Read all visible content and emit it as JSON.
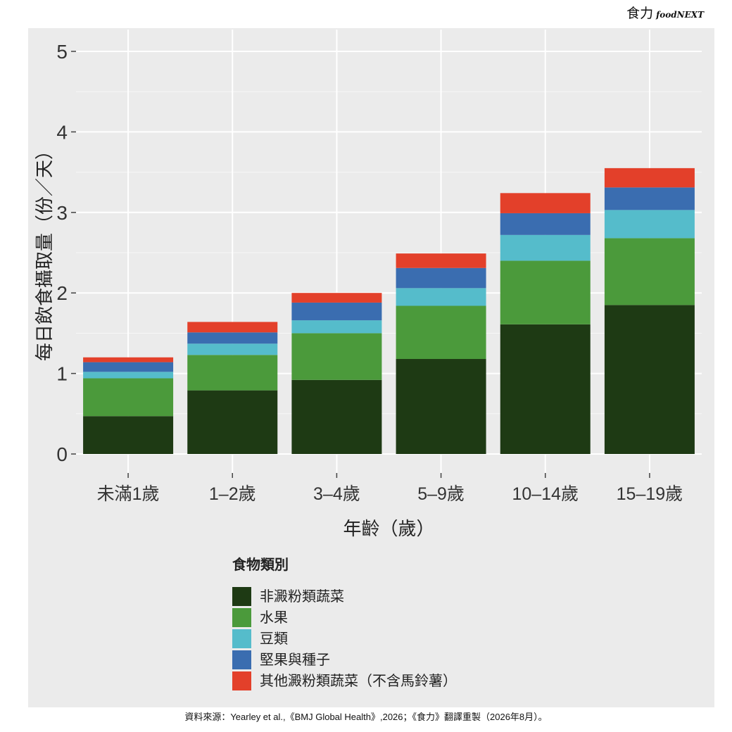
{
  "brand": {
    "cn": "食力",
    "en": "foodNEXT"
  },
  "footer": {
    "source": "資料來源：Yearley et al.,《BMJ Global Health》,2026；《食力》翻譯重製（2026年8月）。"
  },
  "chart_data": {
    "type": "bar",
    "stacked": true,
    "title": "",
    "xlabel": "年齡（歲）",
    "ylabel": "每日飲食攝取量（份／天）",
    "ylim": [
      0,
      5
    ],
    "yticks": [
      "0",
      "1",
      "2",
      "3",
      "4",
      "5"
    ],
    "grid": true,
    "legend_title": "食物類別",
    "legend_position": "bottom",
    "categories": [
      "未滿1歲",
      "1–2歲",
      "3–4歲",
      "5–9歲",
      "10–14歲",
      "15–19歲"
    ],
    "series": [
      {
        "name": "非澱粉類蔬菜",
        "color": "#1e3a14",
        "values": [
          0.47,
          0.79,
          0.92,
          1.18,
          1.61,
          1.85
        ]
      },
      {
        "name": "水果",
        "color": "#4b9a3b",
        "values": [
          0.47,
          0.44,
          0.58,
          0.66,
          0.79,
          0.83
        ]
      },
      {
        "name": "豆類",
        "color": "#55bccb",
        "values": [
          0.08,
          0.14,
          0.16,
          0.22,
          0.32,
          0.35
        ]
      },
      {
        "name": "堅果與種子",
        "color": "#3a6db0",
        "values": [
          0.12,
          0.14,
          0.22,
          0.25,
          0.27,
          0.28
        ]
      },
      {
        "name": "其他澱粉類蔬菜（不含馬鈴薯）",
        "color": "#e3402a",
        "values": [
          0.06,
          0.13,
          0.12,
          0.18,
          0.25,
          0.24
        ]
      }
    ]
  }
}
